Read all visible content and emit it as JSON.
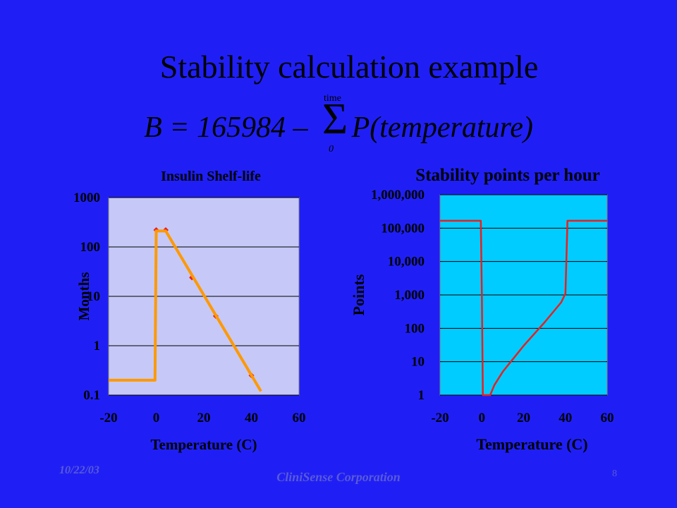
{
  "slide": {
    "title": "Stability calculation example",
    "formula_left": "B = 165984 –",
    "formula_right": "P(temperature)",
    "sum_symbol": "Σ",
    "sum_upper": "time",
    "sum_lower": "0"
  },
  "footer": {
    "date": "10/22/03",
    "company": "CliniSense Corporation",
    "page": "8"
  },
  "colors": {
    "background": "#1f1ff5",
    "left_plot_area": "#c6c9f7",
    "right_plot_area": "#00ccff",
    "orange_line": "#ff9900",
    "red": "#e8201f"
  },
  "chart_data": [
    {
      "type": "scatter",
      "title": "Insulin Shelf-life",
      "xlabel": "Temperature (C)",
      "ylabel": "Months",
      "xlim": [
        -20,
        60
      ],
      "ylim": [
        0.1,
        1000
      ],
      "yscale": "log",
      "xticks": [
        "-20",
        "0",
        "20",
        "40",
        "60"
      ],
      "yticks": [
        "0.1",
        "1",
        "10",
        "100",
        "1000"
      ],
      "ytick_values": [
        0.1,
        1,
        10,
        100,
        1000
      ],
      "grid": "horizontal",
      "series": [
        {
          "kind": "scatter",
          "color": "#e8201f",
          "points": [
            [
              0,
              220
            ],
            [
              4,
              220
            ],
            [
              15,
              24
            ],
            [
              25,
              4
            ],
            [
              40,
              0.25
            ]
          ]
        },
        {
          "kind": "line",
          "color": "#ff9900",
          "points": [
            [
              -20,
              0.2
            ],
            [
              -0.5,
              0.2
            ],
            [
              0,
              210
            ],
            [
              4,
              210
            ],
            [
              44,
              0.12
            ]
          ]
        }
      ]
    },
    {
      "type": "line",
      "title": "Stability points per hour",
      "xlabel": "Temperature (C)",
      "ylabel": "Points",
      "xlim": [
        -20,
        60
      ],
      "ylim": [
        1,
        1000000
      ],
      "yscale": "log",
      "xticks": [
        "-20",
        "0",
        "20",
        "40",
        "60"
      ],
      "yticks": [
        "1",
        "10",
        "100",
        "1,000",
        "10,000",
        "100,000",
        "1,000,000"
      ],
      "ytick_values": [
        1,
        10,
        100,
        1000,
        10000,
        100000,
        1000000
      ],
      "grid": "horizontal",
      "series": [
        {
          "kind": "line",
          "color": "#e8201f",
          "points": [
            [
              -20,
              165984
            ],
            [
              -0.5,
              165984
            ],
            [
              0,
              1000
            ],
            [
              0.5,
              1
            ],
            [
              4,
              1
            ],
            [
              6,
              2
            ],
            [
              10,
              5
            ],
            [
              20,
              30
            ],
            [
              30,
              150
            ],
            [
              38,
              600
            ],
            [
              40,
              1100
            ],
            [
              41,
              165984
            ],
            [
              60,
              165984
            ]
          ]
        }
      ]
    }
  ]
}
